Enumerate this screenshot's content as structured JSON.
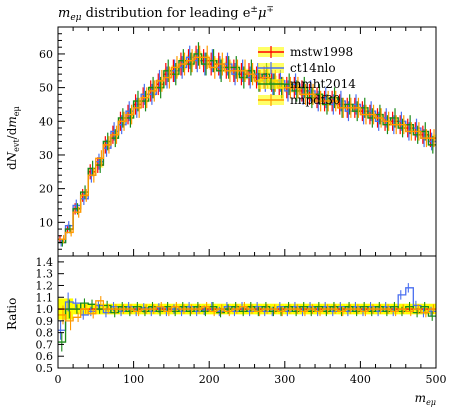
{
  "chart_data": [
    {
      "type": "histogram",
      "title": "m_eμ distribution for leading e±μ∓",
      "title_parts": {
        "pre": "m",
        "sub": "eμ",
        "mid": " distribution for leading e",
        "sup1": "±",
        "mid2": "μ",
        "sup2": "∓"
      },
      "xlabel": "m_eμ",
      "ylabel": "dN_evt/dm_eμ",
      "xlim": [
        0,
        500
      ],
      "ylim": [
        0,
        68
      ],
      "x_ticks": [
        0,
        100,
        200,
        300,
        400,
        500
      ],
      "y_ticks": [
        10,
        20,
        30,
        40,
        50,
        60
      ],
      "legend_position": "top-right",
      "bin_edges_start": 0,
      "bin_width": 10,
      "series": [
        {
          "name": "mstw1998",
          "color": "#ff0000",
          "values": [
            5,
            8,
            14,
            18,
            25,
            27,
            33,
            36,
            40,
            42,
            45,
            47,
            49,
            51,
            54,
            55,
            57,
            58,
            59,
            58,
            57,
            57,
            56,
            55,
            54,
            54,
            53,
            53,
            52,
            51,
            50,
            50,
            49,
            48,
            47,
            46,
            46,
            45,
            44,
            44,
            43,
            42,
            41,
            40,
            40,
            39,
            38,
            37,
            36,
            35
          ]
        },
        {
          "name": "ct14nlo",
          "color": "#4a6ff0",
          "values": [
            4,
            9,
            15,
            17,
            24,
            28,
            32,
            37,
            39,
            43,
            44,
            48,
            48,
            52,
            53,
            55,
            56,
            59,
            58,
            57,
            58,
            56,
            57,
            54,
            55,
            53,
            54,
            52,
            51,
            52,
            49,
            51,
            48,
            49,
            46,
            47,
            45,
            46,
            43,
            45,
            42,
            43,
            40,
            41,
            39,
            40,
            37,
            38,
            35,
            34
          ]
        },
        {
          "name": "mmht2014",
          "color": "#1a8a1a",
          "values": [
            4,
            8,
            14,
            19,
            26,
            27,
            34,
            35,
            41,
            41,
            46,
            46,
            50,
            50,
            55,
            54,
            58,
            57,
            60,
            57,
            58,
            55,
            56,
            56,
            53,
            55,
            52,
            54,
            51,
            50,
            51,
            49,
            50,
            47,
            48,
            45,
            47,
            44,
            45,
            43,
            44,
            41,
            42,
            39,
            41,
            38,
            39,
            36,
            37,
            33
          ]
        },
        {
          "name": "nnpdf30",
          "color": "#ff9900",
          "values": [
            5,
            7,
            13,
            18,
            24,
            29,
            33,
            36,
            40,
            42,
            44,
            47,
            49,
            52,
            53,
            56,
            57,
            58,
            59,
            59,
            56,
            57,
            55,
            55,
            55,
            54,
            52,
            53,
            52,
            50,
            50,
            50,
            48,
            48,
            46,
            46,
            46,
            44,
            44,
            44,
            42,
            42,
            41,
            40,
            39,
            39,
            37,
            37,
            35,
            35
          ]
        }
      ]
    },
    {
      "type": "ratio",
      "ylabel": "Ratio",
      "xlabel": "m_eμ",
      "xlim": [
        0,
        500
      ],
      "ylim": [
        0.5,
        1.45
      ],
      "y_ticks": [
        "0.5",
        "0.6",
        "0.7",
        "0.8",
        "0.9",
        "1.0",
        "1.1",
        "1.2",
        "1.3",
        "1.4"
      ],
      "x_ticks": [
        0,
        100,
        200,
        300,
        400,
        500
      ],
      "band_color": "#ffff00",
      "series": [
        {
          "name": "ct14nlo",
          "color": "#4a6ff0",
          "values": [
            0.82,
            1.06,
            1.05,
            0.95,
            0.98,
            1.03,
            0.97,
            1.02,
            0.98,
            1.02,
            0.98,
            1.01,
            0.98,
            1.01,
            0.98,
            1.0,
            0.98,
            1.02,
            0.98,
            0.99,
            1.02,
            0.98,
            1.02,
            0.98,
            1.02,
            0.98,
            1.02,
            0.98,
            0.98,
            1.02,
            0.98,
            1.02,
            0.98,
            1.02,
            0.98,
            1.02,
            0.98,
            1.02,
            0.98,
            1.02,
            0.98,
            1.02,
            0.98,
            1.02,
            0.98,
            1.12,
            1.18,
            1.03,
            0.97,
            0.98
          ]
        },
        {
          "name": "mmht2014",
          "color": "#1a8a1a",
          "values": [
            0.72,
            1.0,
            1.0,
            1.05,
            1.04,
            1.0,
            1.03,
            0.97,
            1.02,
            0.98,
            1.02,
            0.98,
            1.02,
            0.98,
            1.02,
            0.98,
            1.02,
            0.98,
            1.02,
            0.98,
            1.02,
            0.97,
            1.0,
            1.02,
            0.98,
            1.02,
            0.98,
            1.02,
            0.98,
            0.98,
            1.02,
            0.98,
            1.02,
            0.98,
            1.02,
            0.98,
            1.02,
            0.98,
            1.02,
            0.98,
            1.02,
            0.98,
            1.02,
            0.98,
            1.02,
            0.98,
            1.02,
            0.97,
            1.02,
            0.94
          ]
        },
        {
          "name": "nnpdf30",
          "color": "#ff9900",
          "values": [
            0.95,
            0.9,
            0.93,
            1.0,
            0.96,
            1.07,
            1.0,
            1.0,
            1.0,
            1.0,
            0.98,
            1.0,
            1.0,
            1.02,
            0.98,
            1.02,
            1.0,
            1.0,
            1.0,
            1.02,
            0.98,
            1.0,
            0.98,
            1.0,
            1.02,
            1.0,
            0.98,
            1.0,
            1.0,
            0.98,
            1.0,
            1.0,
            0.98,
            1.0,
            0.98,
            1.0,
            1.0,
            0.98,
            1.0,
            1.0,
            0.98,
            1.0,
            1.0,
            1.0,
            0.98,
            1.0,
            0.98,
            1.0,
            0.97,
            1.0
          ]
        }
      ]
    }
  ]
}
